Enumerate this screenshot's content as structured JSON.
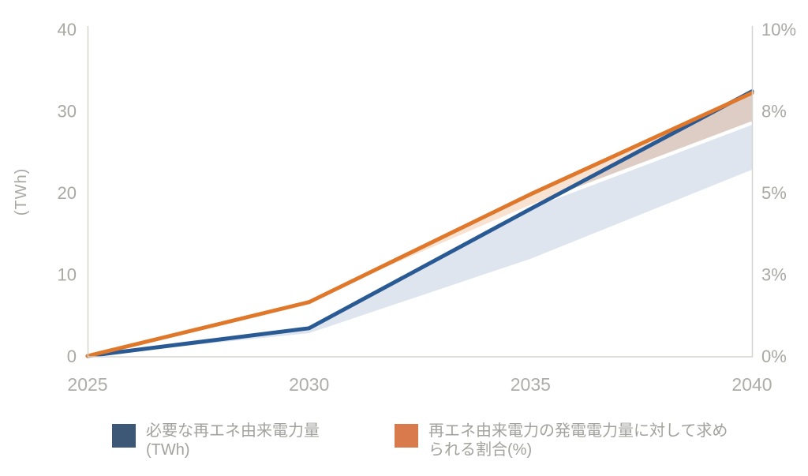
{
  "chart_data": {
    "type": "line",
    "title": "",
    "x": [
      2025,
      2030,
      2035,
      2040
    ],
    "x_tick_labels": [
      "2025",
      "2030",
      "2035",
      "2040"
    ],
    "left_axis": {
      "title": "(TWh)",
      "min": 0,
      "max": 40,
      "tick_labels": [
        "40",
        "30",
        "20",
        "10",
        "0"
      ]
    },
    "right_axis": {
      "min": 0,
      "max": 10,
      "tick_labels": [
        "10%",
        "8%",
        "5%",
        "3%",
        "0%"
      ]
    },
    "grid": false,
    "legend_position": "bottom",
    "series": [
      {
        "name": "必要な再エネ由来電力量(TWh)",
        "axis": "left",
        "style": "line-with-lower-band",
        "values": [
          0,
          3.4,
          18.0,
          32.4
        ],
        "band_lower": [
          0,
          2.8,
          11.9,
          22.8
        ]
      },
      {
        "name": "再エネ由来電力の発電電力量に対して求められる割合(%)",
        "axis": "right",
        "style": "line-with-lower-band",
        "values": [
          0,
          1.65,
          4.95,
          8.05
        ],
        "band_lower": [
          0,
          1.65,
          4.57,
          7.13
        ]
      }
    ]
  },
  "legend": {
    "items": [
      {
        "label": "必要な再エネ由来電力量\n(TWh)",
        "color": "#3d5877"
      },
      {
        "label": "再エネ由来電力の発電電力量に対して求め\nられる割合(%)",
        "color": "#d87a4b"
      }
    ]
  },
  "colors": {
    "blue_line": "#2a5a94",
    "orange_line": "#e0782b",
    "blue_band": "#dee5ef",
    "orange_band": "rgba(224,122,45,0.22)",
    "band_edge_highlight": "#ffffff",
    "axis_line": "#d4d4d0",
    "tick_text": "#a8a8a4"
  }
}
